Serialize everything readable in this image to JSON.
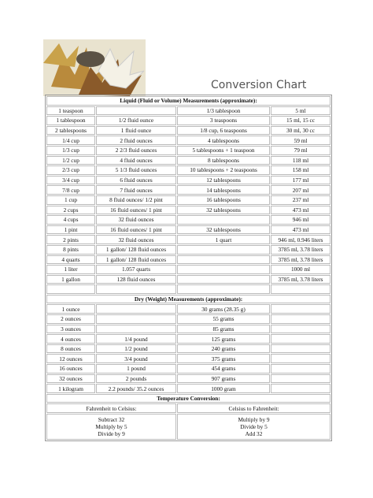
{
  "header": {
    "title": "Conversion Chart"
  },
  "liquid": {
    "heading": "Liquid (Fluid or Volume) Measurements (approximate):",
    "rows": [
      [
        "1 teaspoon",
        null,
        "1/3 tablespoon",
        "5 ml"
      ],
      [
        "1 tablespoon",
        "1/2 fluid ounce",
        "3 teaspoons",
        "15 ml, 15 cc"
      ],
      [
        "2 tablespoons",
        "1 fluid ounce",
        "1/8 cup, 6 teaspoons",
        "30 ml, 30 cc"
      ],
      [
        "1/4 cup",
        "2 fluid ounces",
        "4 tablespoons",
        "59 ml"
      ],
      [
        "1/3 cup",
        "2 2/3 fluid ounces",
        "5 tablespoons + 1 teaspoon",
        "79 ml"
      ],
      [
        "1/2 cup",
        "4 fluid ounces",
        "8 tablespoons",
        "118 ml"
      ],
      [
        "2/3 cup",
        "5 1/3 fluid ounces",
        "10 tablespoons + 2 teaspoons",
        "158 ml"
      ],
      [
        "3/4 cup",
        "6 fluid ounces",
        "12 tablespoons",
        "177 ml"
      ],
      [
        "7/8 cup",
        "7 fluid ounces",
        "14 tablespoons",
        "207 ml"
      ],
      [
        "1 cup",
        "8 fluid ounces/ 1/2 pint",
        "16 tablespoons",
        "237 ml"
      ],
      [
        "2 cups",
        "16 fluid ounces/ 1 pint",
        "32 tablespoons",
        "473 ml"
      ],
      [
        "4 cups",
        "32 fluid ounces",
        null,
        "946 ml"
      ],
      [
        "1 pint",
        "16 fluid ounces/ 1 pint",
        "32 tablespoons",
        "473 ml"
      ],
      [
        "2 pints",
        "32 fluid ounces",
        "1 quart",
        "946 ml, 0.946 liters"
      ],
      [
        "8 pints",
        "1 gallon/ 128 fluid ounces",
        null,
        "3785 ml, 3.78 liters"
      ],
      [
        "4 quarts",
        "1 gallon/ 128 fluid ounces",
        null,
        "3785 ml, 3.78 liters"
      ],
      [
        "1 liter",
        "1.057 quarts",
        null,
        "1000 ml"
      ],
      [
        "1 gallon",
        "128 fluid ounces",
        null,
        "3785 ml, 3.78 liters"
      ]
    ]
  },
  "dry": {
    "heading": "Dry (Weight) Measurements (approximate):",
    "rows": [
      [
        "1 ounce",
        null,
        "30 grams (28.35 g)",
        null
      ],
      [
        "2 ounces",
        null,
        "55 grams",
        null
      ],
      [
        "3 ounces",
        null,
        "85 grams",
        null
      ],
      [
        "4 ounces",
        "1/4 pound",
        "125 grams",
        null
      ],
      [
        "8 ounces",
        "1/2 pound",
        "240 grams",
        null
      ],
      [
        "12 ounces",
        "3/4 pound",
        "375 grams",
        null
      ],
      [
        "16 ounces",
        "1 pound",
        "454 grams",
        null
      ],
      [
        "32 ounces",
        "2 pounds",
        "907 grams",
        null
      ],
      [
        "1 kilogram",
        "2.2 pounds/ 35.2 ounces",
        "1000 gram",
        null
      ]
    ]
  },
  "temperature": {
    "heading": "Temperature Conversion:",
    "columns": [
      {
        "title": "Fahrenheit to Celsius:",
        "steps": [
          "Subtract 32",
          "Multiply by 5",
          "Divide by 9"
        ]
      },
      {
        "title": "Celsius to Fahrenheit:",
        "steps": [
          "Multiply by 9",
          "Divide by 5",
          "Add 32"
        ]
      }
    ]
  }
}
